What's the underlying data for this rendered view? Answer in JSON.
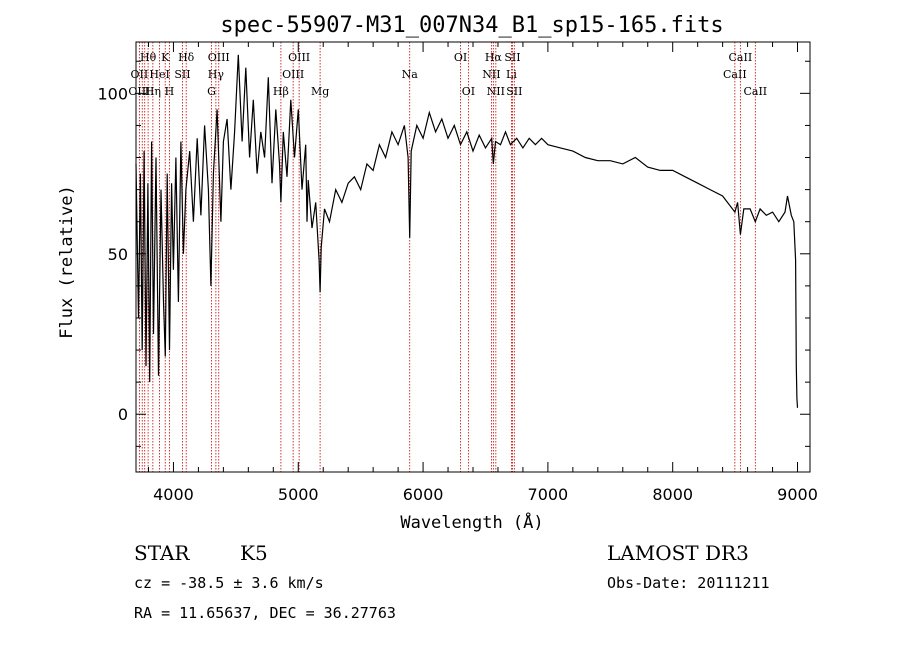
{
  "chart_data": {
    "type": "line",
    "title": "spec-55907-M31_007N34_B1_sp15-165.fits",
    "xlabel": "Wavelength (Å)",
    "ylabel": "Flux (relative)",
    "xlim": [
      3700,
      9100
    ],
    "ylim": [
      -18,
      116
    ],
    "x_ticks": [
      4000,
      5000,
      6000,
      7000,
      8000,
      9000
    ],
    "y_ticks": [
      0,
      50,
      100
    ],
    "series": [
      {
        "name": "spectrum",
        "color": "#000000",
        "points": [
          [
            3700,
            78
          ],
          [
            3720,
            30
          ],
          [
            3735,
            75
          ],
          [
            3750,
            20
          ],
          [
            3765,
            82
          ],
          [
            3780,
            15
          ],
          [
            3795,
            72
          ],
          [
            3810,
            10
          ],
          [
            3825,
            85
          ],
          [
            3840,
            25
          ],
          [
            3860,
            80
          ],
          [
            3880,
            12
          ],
          [
            3900,
            70
          ],
          [
            3920,
            35
          ],
          [
            3935,
            18
          ],
          [
            3950,
            75
          ],
          [
            3968,
            20
          ],
          [
            3985,
            72
          ],
          [
            4000,
            45
          ],
          [
            4020,
            80
          ],
          [
            4040,
            35
          ],
          [
            4060,
            85
          ],
          [
            4080,
            50
          ],
          [
            4100,
            70
          ],
          [
            4130,
            82
          ],
          [
            4160,
            60
          ],
          [
            4190,
            86
          ],
          [
            4220,
            62
          ],
          [
            4250,
            90
          ],
          [
            4280,
            70
          ],
          [
            4300,
            40
          ],
          [
            4320,
            75
          ],
          [
            4350,
            95
          ],
          [
            4380,
            60
          ],
          [
            4400,
            85
          ],
          [
            4430,
            92
          ],
          [
            4460,
            70
          ],
          [
            4490,
            88
          ],
          [
            4520,
            112
          ],
          [
            4550,
            85
          ],
          [
            4580,
            108
          ],
          [
            4610,
            80
          ],
          [
            4640,
            98
          ],
          [
            4670,
            75
          ],
          [
            4700,
            88
          ],
          [
            4730,
            80
          ],
          [
            4760,
            105
          ],
          [
            4790,
            72
          ],
          [
            4820,
            95
          ],
          [
            4850,
            78
          ],
          [
            4861,
            66
          ],
          [
            4880,
            88
          ],
          [
            4910,
            74
          ],
          [
            4940,
            98
          ],
          [
            4970,
            80
          ],
          [
            5000,
            95
          ],
          [
            5030,
            70
          ],
          [
            5060,
            84
          ],
          [
            5070,
            60
          ],
          [
            5080,
            73
          ],
          [
            5110,
            58
          ],
          [
            5140,
            66
          ],
          [
            5167,
            48
          ],
          [
            5175,
            38
          ],
          [
            5184,
            52
          ],
          [
            5210,
            64
          ],
          [
            5250,
            60
          ],
          [
            5300,
            70
          ],
          [
            5350,
            66
          ],
          [
            5400,
            72
          ],
          [
            5450,
            74
          ],
          [
            5500,
            70
          ],
          [
            5550,
            78
          ],
          [
            5600,
            76
          ],
          [
            5650,
            84
          ],
          [
            5700,
            80
          ],
          [
            5750,
            88
          ],
          [
            5800,
            84
          ],
          [
            5850,
            90
          ],
          [
            5880,
            80
          ],
          [
            5893,
            55
          ],
          [
            5905,
            82
          ],
          [
            5950,
            90
          ],
          [
            6000,
            86
          ],
          [
            6050,
            94
          ],
          [
            6100,
            88
          ],
          [
            6150,
            92
          ],
          [
            6200,
            86
          ],
          [
            6250,
            90
          ],
          [
            6300,
            84
          ],
          [
            6350,
            88
          ],
          [
            6400,
            82
          ],
          [
            6450,
            87
          ],
          [
            6500,
            83
          ],
          [
            6550,
            86
          ],
          [
            6563,
            78
          ],
          [
            6580,
            85
          ],
          [
            6620,
            84
          ],
          [
            6660,
            88
          ],
          [
            6700,
            84
          ],
          [
            6750,
            86
          ],
          [
            6800,
            83
          ],
          [
            6850,
            86
          ],
          [
            6900,
            84
          ],
          [
            6950,
            86
          ],
          [
            7000,
            84
          ],
          [
            7100,
            83
          ],
          [
            7200,
            82
          ],
          [
            7300,
            80
          ],
          [
            7400,
            79
          ],
          [
            7500,
            79
          ],
          [
            7600,
            78
          ],
          [
            7700,
            80
          ],
          [
            7800,
            77
          ],
          [
            7900,
            76
          ],
          [
            8000,
            76
          ],
          [
            8100,
            74
          ],
          [
            8200,
            72
          ],
          [
            8300,
            70
          ],
          [
            8400,
            68
          ],
          [
            8498,
            63
          ],
          [
            8520,
            66
          ],
          [
            8542,
            56
          ],
          [
            8570,
            64
          ],
          [
            8620,
            64
          ],
          [
            8662,
            60
          ],
          [
            8700,
            64
          ],
          [
            8750,
            62
          ],
          [
            8800,
            63
          ],
          [
            8850,
            60
          ],
          [
            8900,
            63
          ],
          [
            8920,
            68
          ],
          [
            8950,
            62
          ],
          [
            8970,
            60
          ],
          [
            8985,
            48
          ],
          [
            8990,
            15
          ],
          [
            8995,
            5
          ],
          [
            9000,
            2
          ]
        ]
      }
    ],
    "emission_lines": [
      {
        "label": "Hθ",
        "wavelength": 3797,
        "row": 0
      },
      {
        "label": "K",
        "wavelength": 3934,
        "row": 0
      },
      {
        "label": "Hδ",
        "wavelength": 4102,
        "row": 0
      },
      {
        "label": "OIII",
        "wavelength": 4363,
        "row": 0
      },
      {
        "label": "OIII",
        "wavelength": 5007,
        "row": 0
      },
      {
        "label": "OI",
        "wavelength": 6300,
        "row": 0
      },
      {
        "label": "Hα",
        "wavelength": 6563,
        "row": 0
      },
      {
        "label": "SII",
        "wavelength": 6716,
        "row": 0
      },
      {
        "label": "CaII",
        "wavelength": 8542,
        "row": 0
      },
      {
        "label": "OII",
        "wavelength": 3727,
        "row": 1
      },
      {
        "label": "HeI",
        "wavelength": 3889,
        "row": 1
      },
      {
        "label": "SII",
        "wavelength": 4072,
        "row": 1
      },
      {
        "label": "Hγ",
        "wavelength": 4340,
        "row": 1
      },
      {
        "label": "OIII",
        "wavelength": 4959,
        "row": 1
      },
      {
        "label": "Na",
        "wavelength": 5893,
        "row": 1
      },
      {
        "label": "NII",
        "wavelength": 6548,
        "row": 1
      },
      {
        "label": "Li",
        "wavelength": 6708,
        "row": 1
      },
      {
        "label": "CaII",
        "wavelength": 8498,
        "row": 1
      },
      {
        "label": "OIII",
        "wavelength": 3727,
        "row": 2
      },
      {
        "label": "Hη",
        "wavelength": 3835,
        "row": 2
      },
      {
        "label": "H",
        "wavelength": 3968,
        "row": 2
      },
      {
        "label": "G",
        "wavelength": 4305,
        "row": 2
      },
      {
        "label": "Hβ",
        "wavelength": 4861,
        "row": 2
      },
      {
        "label": "Mg",
        "wavelength": 5175,
        "row": 2
      },
      {
        "label": "OI",
        "wavelength": 6363,
        "row": 2
      },
      {
        "label": "NII",
        "wavelength": 6583,
        "row": 2
      },
      {
        "label": "SII",
        "wavelength": 6731,
        "row": 2
      },
      {
        "label": "CaII",
        "wavelength": 8662,
        "row": 2
      }
    ],
    "extra_line_wavelengths": [
      3750,
      3770,
      3889,
      4102,
      4340,
      4861,
      5007,
      6300,
      6563,
      6583,
      6716,
      6731,
      8498,
      8542,
      8662
    ]
  },
  "info": {
    "object_class": "STAR",
    "subclass": "K5",
    "survey": "LAMOST DR3",
    "redshift": "cz = -38.5 ± 3.6 km/s",
    "obs_date": "Obs-Date: 20111211",
    "coords": "RA =  11.65637, DEC =  36.27763"
  },
  "colors": {
    "line_marker": "#cc0000",
    "spectrum": "#000000",
    "axes": "#000000"
  }
}
